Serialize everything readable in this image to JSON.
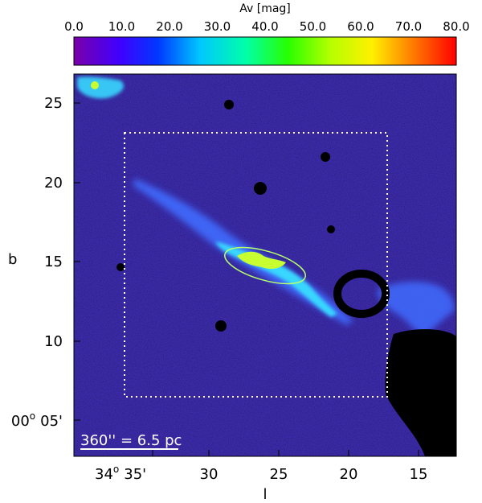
{
  "colorbar": {
    "title": "Av [mag]",
    "ticks": [
      "0.0",
      "10.0",
      "20.0",
      "30.0",
      "40.0",
      "50.0",
      "60.0",
      "70.0",
      "80.0"
    ],
    "range": [
      0,
      80
    ]
  },
  "axes": {
    "xlabel": "l",
    "ylabel": "b",
    "x_ticks": [
      {
        "label": "34",
        "sup": "o",
        "suffix": "35'"
      },
      {
        "label": "30"
      },
      {
        "label": "25"
      },
      {
        "label": "20"
      },
      {
        "label": "15"
      }
    ],
    "y_ticks": [
      "25",
      "20",
      "15",
      "10"
    ],
    "y_tick_bottom": {
      "label": "00",
      "sup": "o",
      "suffix": "05'"
    }
  },
  "scale_bar": {
    "text": "360'' = 6.5 pc"
  },
  "colors": {
    "background_map": "#3a2aa6",
    "filament_low": "#3f6cff",
    "filament_mid": "#37d7ff",
    "filament_high": "#c8ff30",
    "masked": "#000000",
    "overlay": "#ffffff",
    "ellipse": "#b7ff6a"
  }
}
